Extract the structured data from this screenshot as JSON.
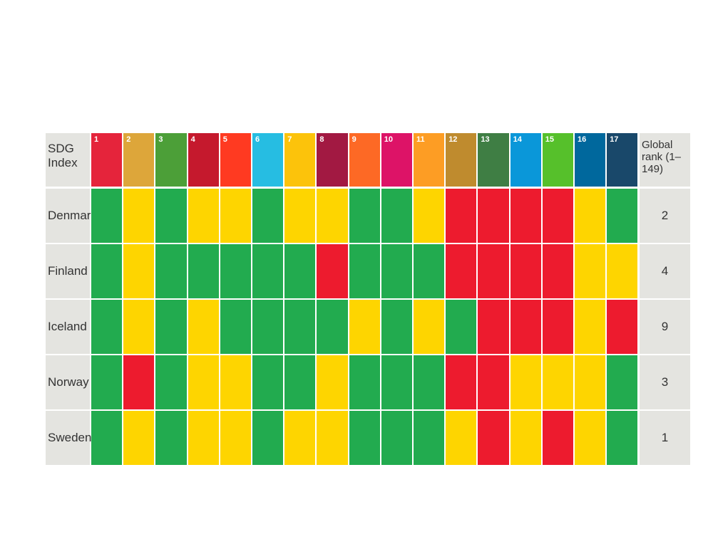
{
  "header": {
    "index_label": "SDG Index",
    "rank_label": "Global rank (1–149)",
    "goals": [
      {
        "number": "1",
        "color": "#e5243b"
      },
      {
        "number": "2",
        "color": "#dda63a"
      },
      {
        "number": "3",
        "color": "#4c9f38"
      },
      {
        "number": "4",
        "color": "#c5192d"
      },
      {
        "number": "5",
        "color": "#ff3a21"
      },
      {
        "number": "6",
        "color": "#26bde2"
      },
      {
        "number": "7",
        "color": "#fcc30b"
      },
      {
        "number": "8",
        "color": "#a21942"
      },
      {
        "number": "9",
        "color": "#fd6925"
      },
      {
        "number": "10",
        "color": "#dd1367"
      },
      {
        "number": "11",
        "color": "#fd9d24"
      },
      {
        "number": "12",
        "color": "#bf8b2e"
      },
      {
        "number": "13",
        "color": "#3f7e44"
      },
      {
        "number": "14",
        "color": "#0a97d9"
      },
      {
        "number": "15",
        "color": "#56c02b"
      },
      {
        "number": "16",
        "color": "#00689d"
      },
      {
        "number": "17",
        "color": "#19486a"
      }
    ]
  },
  "table": {
    "rows": [
      {
        "country": "Denmark",
        "rank": "2",
        "cells": [
          "#22ab4f",
          "#fed500",
          "#22ab4f",
          "#fed500",
          "#fed500",
          "#22ab4f",
          "#fed500",
          "#fed500",
          "#22ab4f",
          "#22ab4f",
          "#fed500",
          "#ed1b2e",
          "#ed1b2e",
          "#ed1b2e",
          "#ed1b2e",
          "#fed500",
          "#22ab4f"
        ]
      },
      {
        "country": "Finland",
        "rank": "4",
        "cells": [
          "#22ab4f",
          "#fed500",
          "#22ab4f",
          "#22ab4f",
          "#22ab4f",
          "#22ab4f",
          "#22ab4f",
          "#ed1b2e",
          "#22ab4f",
          "#22ab4f",
          "#22ab4f",
          "#ed1b2e",
          "#ed1b2e",
          "#ed1b2e",
          "#ed1b2e",
          "#fed500",
          "#fed500"
        ]
      },
      {
        "country": "Iceland",
        "rank": "9",
        "cells": [
          "#22ab4f",
          "#fed500",
          "#22ab4f",
          "#fed500",
          "#22ab4f",
          "#22ab4f",
          "#22ab4f",
          "#22ab4f",
          "#fed500",
          "#22ab4f",
          "#fed500",
          "#22ab4f",
          "#ed1b2e",
          "#ed1b2e",
          "#ed1b2e",
          "#fed500",
          "#ed1b2e"
        ]
      },
      {
        "country": "Norway",
        "rank": "3",
        "cells": [
          "#22ab4f",
          "#ed1b2e",
          "#22ab4f",
          "#fed500",
          "#fed500",
          "#22ab4f",
          "#22ab4f",
          "#fed500",
          "#22ab4f",
          "#22ab4f",
          "#22ab4f",
          "#ed1b2e",
          "#ed1b2e",
          "#fed500",
          "#fed500",
          "#fed500",
          "#22ab4f"
        ]
      },
      {
        "country": "Sweden",
        "rank": "1",
        "cells": [
          "#22ab4f",
          "#fed500",
          "#22ab4f",
          "#fed500",
          "#fed500",
          "#22ab4f",
          "#fed500",
          "#fed500",
          "#22ab4f",
          "#22ab4f",
          "#22ab4f",
          "#fed500",
          "#ed1b2e",
          "#fed500",
          "#ed1b2e",
          "#fed500",
          "#22ab4f"
        ]
      }
    ]
  }
}
